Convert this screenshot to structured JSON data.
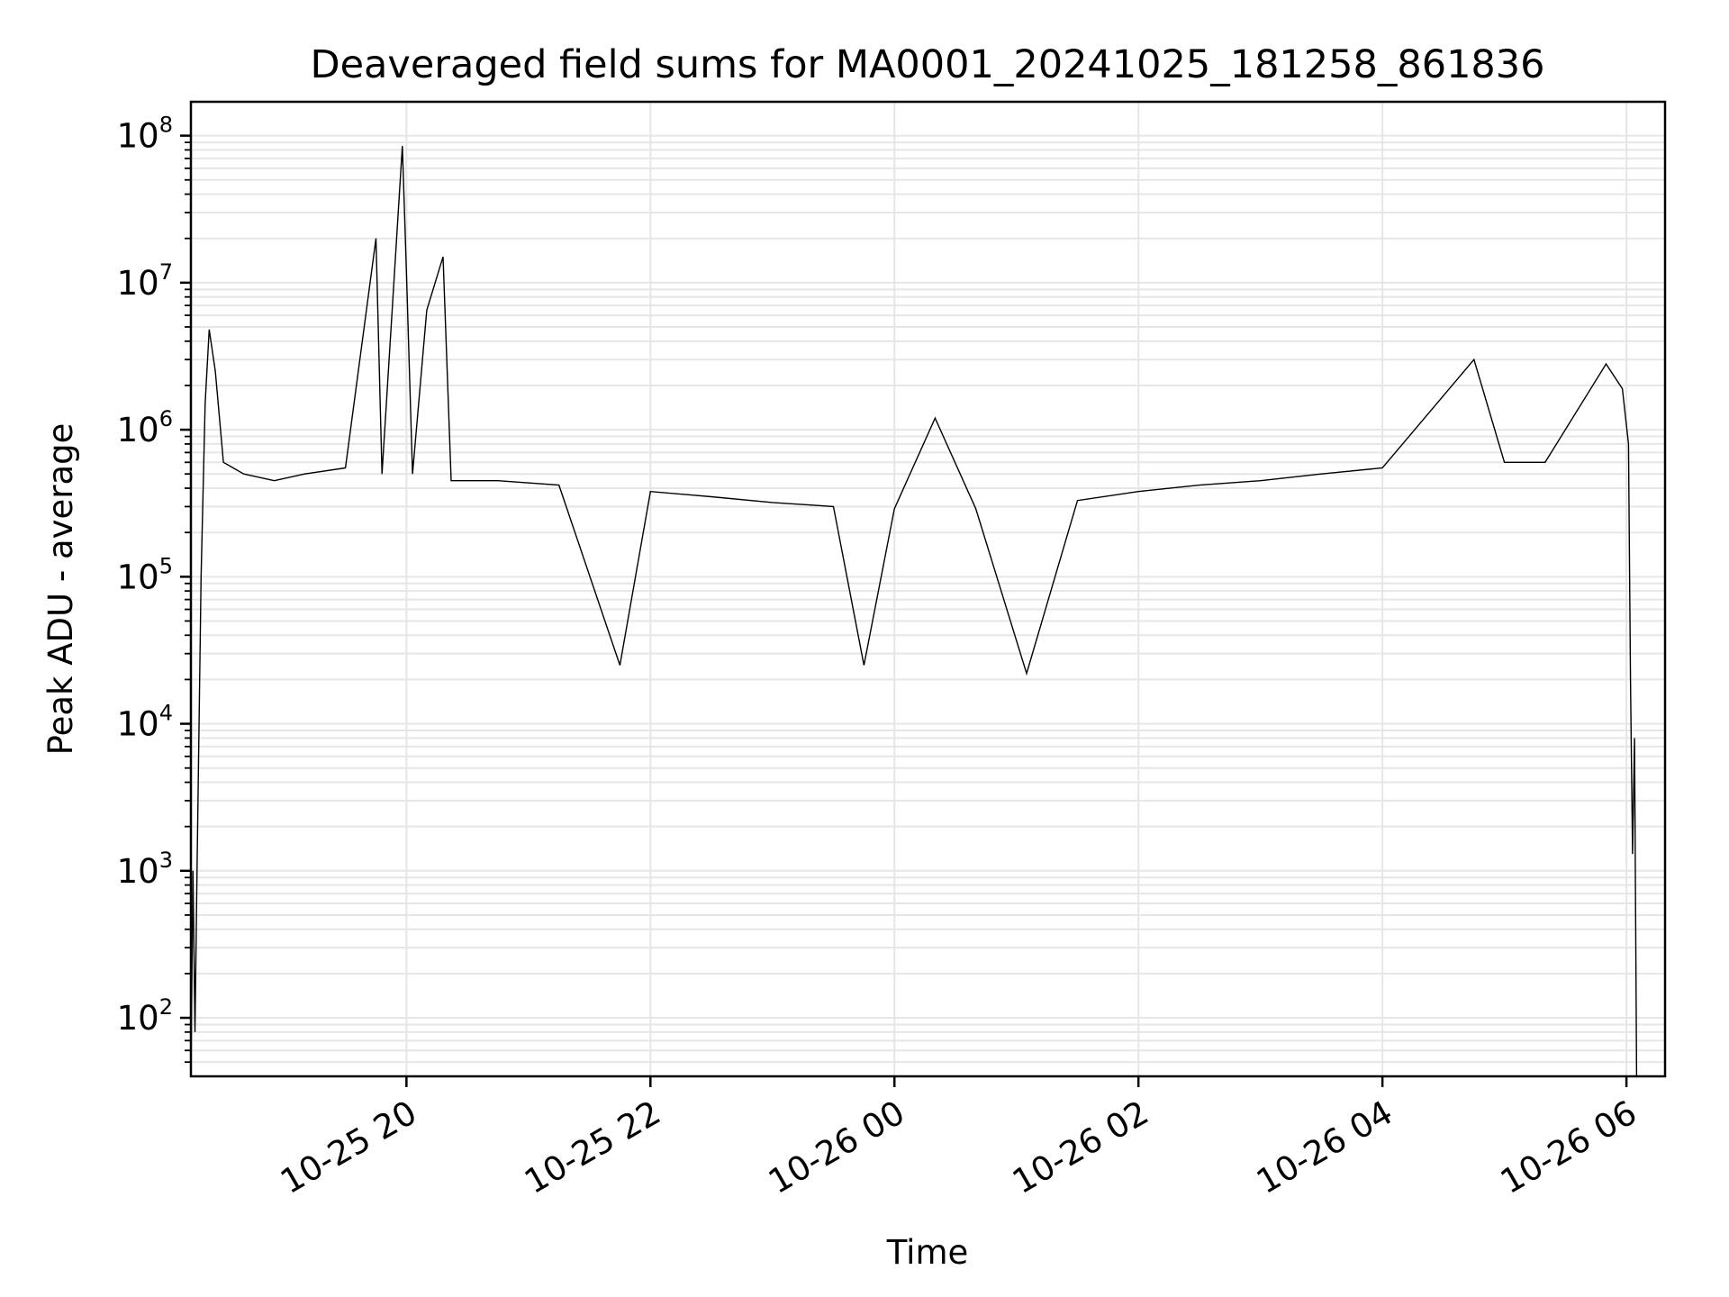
{
  "chart_data": {
    "type": "line",
    "title": "Deaveraged field sums for MA0001_20241025_181258_861836",
    "xlabel": "Time",
    "ylabel": "Peak ADU - average",
    "x_scale": "time",
    "y_scale": "log",
    "xlim": [
      "2024-10-25 18:14",
      "2024-10-26 06:19"
    ],
    "ylim": [
      40,
      170000000
    ],
    "x_ticks": [
      {
        "t": "2024-10-25 20:00",
        "label": "10-25 20"
      },
      {
        "t": "2024-10-25 22:00",
        "label": "10-25 22"
      },
      {
        "t": "2024-10-26 00:00",
        "label": "10-26 00"
      },
      {
        "t": "2024-10-26 02:00",
        "label": "10-26 02"
      },
      {
        "t": "2024-10-26 04:00",
        "label": "10-26 04"
      },
      {
        "t": "2024-10-26 06:00",
        "label": "10-26 06"
      }
    ],
    "y_ticks": [
      {
        "value": 100,
        "base": "10",
        "exp": "2"
      },
      {
        "value": 1000,
        "base": "10",
        "exp": "3"
      },
      {
        "value": 10000,
        "base": "10",
        "exp": "4"
      },
      {
        "value": 100000,
        "base": "10",
        "exp": "5"
      },
      {
        "value": 1000000,
        "base": "10",
        "exp": "6"
      },
      {
        "value": 10000000,
        "base": "10",
        "exp": "7"
      },
      {
        "value": 100000000,
        "base": "10",
        "exp": "8"
      }
    ],
    "grid": true,
    "color": "#000000",
    "series": [
      {
        "points": [
          [
            "2024-10-25 18:14",
            40
          ],
          [
            "2024-10-25 18:15",
            1000
          ],
          [
            "2024-10-25 18:16",
            80
          ],
          [
            "2024-10-25 18:17",
            1000
          ],
          [
            "2024-10-25 18:19",
            100000
          ],
          [
            "2024-10-25 18:21",
            1500000
          ],
          [
            "2024-10-25 18:23",
            4800000
          ],
          [
            "2024-10-25 18:26",
            2500000
          ],
          [
            "2024-10-25 18:30",
            600000
          ],
          [
            "2024-10-25 18:40",
            500000
          ],
          [
            "2024-10-25 18:55",
            450000
          ],
          [
            "2024-10-25 19:10",
            500000
          ],
          [
            "2024-10-25 19:30",
            550000
          ],
          [
            "2024-10-25 19:45",
            20000000
          ],
          [
            "2024-10-25 19:48",
            500000
          ],
          [
            "2024-10-25 19:58",
            85000000
          ],
          [
            "2024-10-25 20:00",
            12000000
          ],
          [
            "2024-10-25 20:03",
            500000
          ],
          [
            "2024-10-25 20:10",
            6500000
          ],
          [
            "2024-10-25 20:18",
            15000000
          ],
          [
            "2024-10-25 20:22",
            450000
          ],
          [
            "2024-10-25 20:45",
            450000
          ],
          [
            "2024-10-25 21:15",
            420000
          ],
          [
            "2024-10-25 21:45",
            25000
          ],
          [
            "2024-10-25 22:00",
            380000
          ],
          [
            "2024-10-25 22:30",
            350000
          ],
          [
            "2024-10-25 23:00",
            320000
          ],
          [
            "2024-10-25 23:30",
            300000
          ],
          [
            "2024-10-25 23:45",
            25000
          ],
          [
            "2024-10-26 00:00",
            290000
          ],
          [
            "2024-10-26 00:20",
            1200000
          ],
          [
            "2024-10-26 00:40",
            290000
          ],
          [
            "2024-10-26 01:05",
            22000
          ],
          [
            "2024-10-26 01:30",
            330000
          ],
          [
            "2024-10-26 02:00",
            380000
          ],
          [
            "2024-10-26 02:30",
            420000
          ],
          [
            "2024-10-26 03:00",
            450000
          ],
          [
            "2024-10-26 03:30",
            500000
          ],
          [
            "2024-10-26 04:00",
            550000
          ],
          [
            "2024-10-26 04:45",
            3000000
          ],
          [
            "2024-10-26 05:00",
            600000
          ],
          [
            "2024-10-26 05:20",
            600000
          ],
          [
            "2024-10-26 05:50",
            2800000
          ],
          [
            "2024-10-26 05:58",
            1900000
          ],
          [
            "2024-10-26 06:01",
            800000
          ],
          [
            "2024-10-26 06:02",
            20000
          ],
          [
            "2024-10-26 06:03",
            1300
          ],
          [
            "2024-10-26 06:04",
            8000
          ],
          [
            "2024-10-26 06:05",
            40
          ]
        ]
      }
    ]
  }
}
